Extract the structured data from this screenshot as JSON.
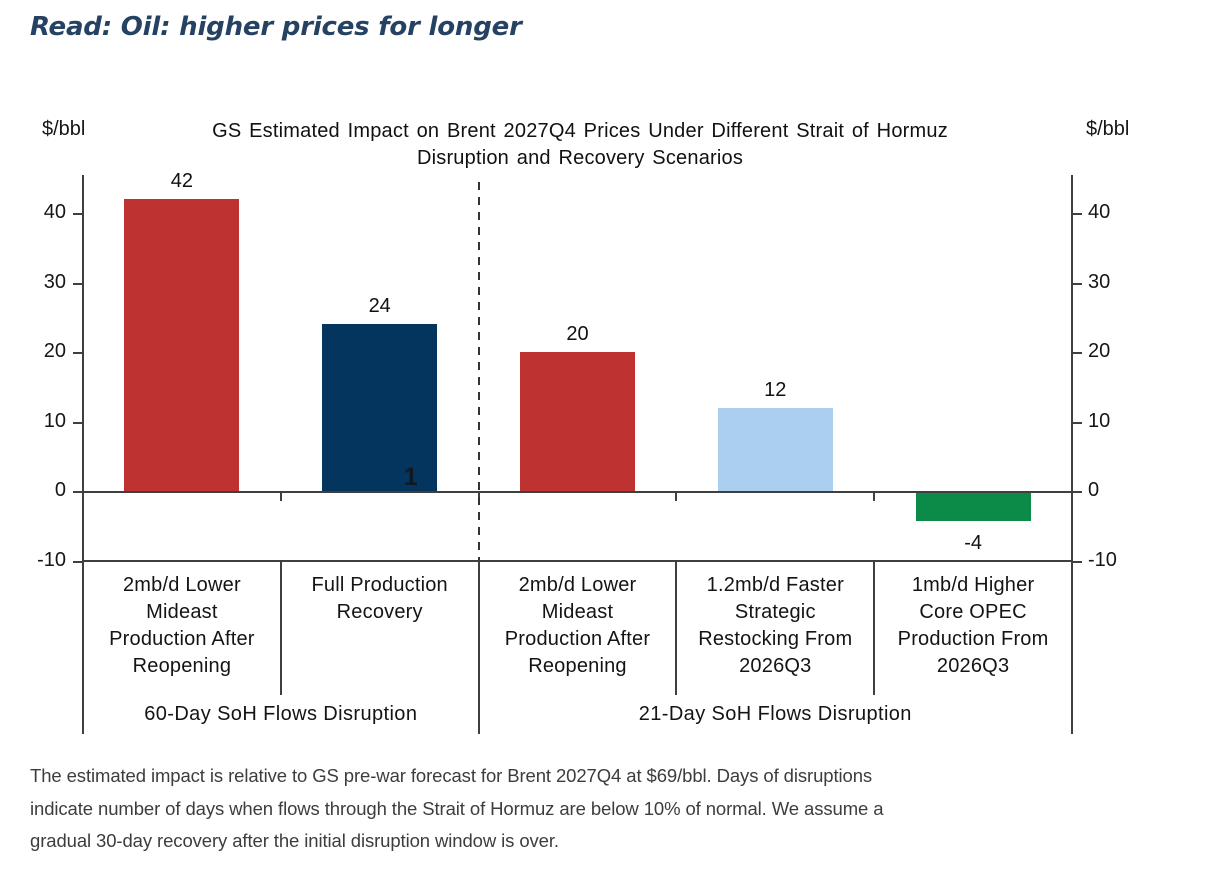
{
  "header": {
    "title": "Read: Oil: higher prices for longer"
  },
  "chart_data": {
    "type": "bar",
    "title": "GS Estimated Impact on Brent 2027Q4 Prices Under Different Strait of Hormuz Disruption and Recovery Scenarios",
    "title_lines": [
      "GS Estimated Impact on Brent 2027Q4 Prices Under Different Strait of Hormuz",
      "Disruption and Recovery Scenarios"
    ],
    "ylabel_left": "$/bbl",
    "ylabel_right": "$/bbl",
    "ylim": [
      -10,
      45.5
    ],
    "yticks": [
      40,
      30,
      20,
      10,
      0,
      -10
    ],
    "grid": false,
    "legend": null,
    "categories": [
      "2mb/d Lower Mideast Production After Reopening",
      "Full Production Recovery",
      "2mb/d Lower Mideast Production After Reopening",
      "1.2mb/d Faster Strategic Restocking From 2026Q3",
      "1mb/d Higher Core OPEC Production From 2026Q3"
    ],
    "category_lines": [
      [
        "2mb/d Lower",
        "Mideast",
        "Production After",
        "Reopening"
      ],
      [
        "Full Production",
        "Recovery"
      ],
      [
        "2mb/d Lower",
        "Mideast",
        "Production After",
        "Reopening"
      ],
      [
        "1.2mb/d Faster",
        "Strategic",
        "Restocking From",
        "2026Q3"
      ],
      [
        "1mb/d Higher",
        "Core OPEC",
        "Production From",
        "2026Q3"
      ]
    ],
    "values": [
      42,
      24,
      20,
      12,
      -4
    ],
    "value_labels": [
      "42",
      "24",
      "20",
      "12",
      "-4"
    ],
    "bar_colors": [
      "#be3231",
      "#04355f",
      "#be3231",
      "#abcfee",
      "#0c8b48"
    ],
    "groups": [
      {
        "label": "60-Day SoH Flows Disruption",
        "start": 0,
        "end": 2
      },
      {
        "label": "21-Day SoH Flows Disruption",
        "start": 2,
        "end": 5
      }
    ],
    "divider_after_index": 2,
    "stray_label": "1"
  },
  "footnote": {
    "text": "The estimated impact is relative to GS pre-war forecast for Brent 2027Q4 at $69/bbl. Days of disruptions indicate number of days when flows through the Strait of Hormuz are below 10% of normal. We assume a gradual 30-day recovery after the initial disruption window is over.",
    "lines": [
      "The estimated impact is relative to GS pre-war forecast for Brent 2027Q4 at $69/bbl. Days of disruptions",
      "indicate number of days when flows through the Strait of Hormuz are below 10% of normal. We assume a",
      "gradual 30-day recovery after the initial disruption window is over."
    ]
  },
  "colors": {
    "heading": "#254263",
    "bar_red": "#be3231",
    "bar_navy": "#04355f",
    "bar_lightblue": "#abcfee",
    "bar_green": "#0c8b48",
    "axis": "#3f3f3f",
    "text": "#141414",
    "footnote_text": "#3d3d3d"
  }
}
